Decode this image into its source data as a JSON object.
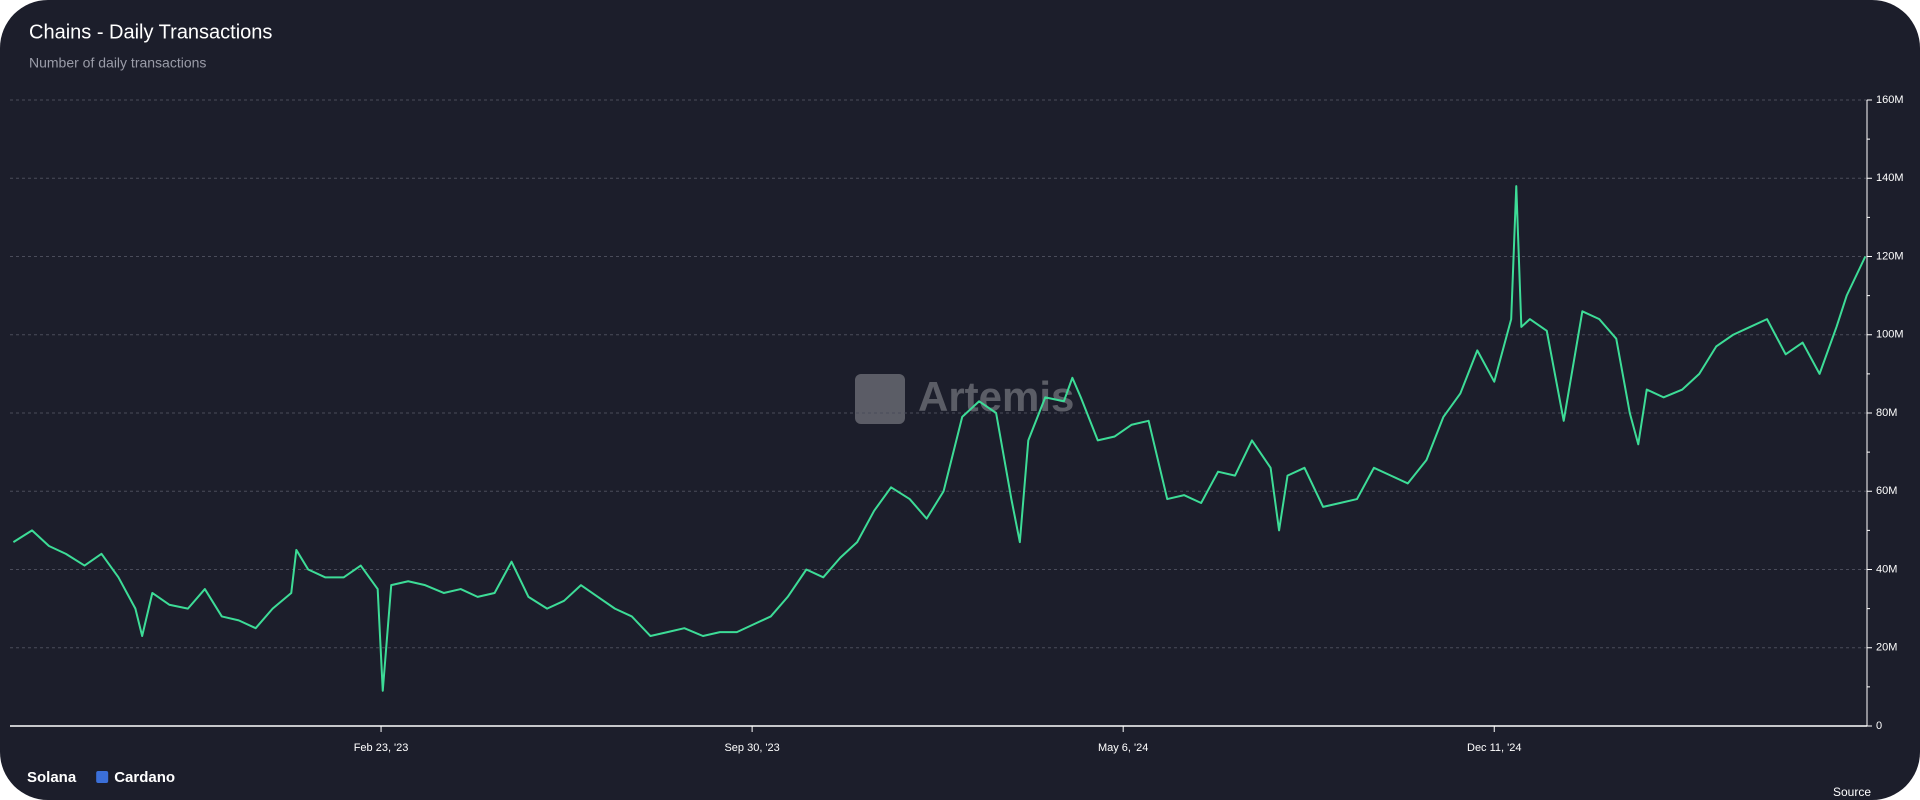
{
  "chart_data": {
    "type": "line",
    "title": "Chains - Daily Transactions",
    "subtitle": "Number of daily transactions",
    "watermark": "Artemis",
    "source": "Source",
    "legend": [
      {
        "name": "Solana",
        "color": "#3ddc97"
      },
      {
        "name": "Cardano",
        "color": "#3b6fd8"
      }
    ],
    "x": [
      "2022-07-21",
      "2022-08-01",
      "2022-08-11",
      "2022-08-21",
      "2022-09-01",
      "2022-09-11",
      "2022-09-21",
      "2022-10-01",
      "2022-10-05",
      "2022-10-11",
      "2022-10-21",
      "2022-11-01",
      "2022-11-11",
      "2022-11-21",
      "2022-12-01",
      "2022-12-11",
      "2022-12-21",
      "2023-01-01",
      "2023-01-04",
      "2023-01-11",
      "2023-01-21",
      "2023-02-01",
      "2023-02-11",
      "2023-02-21",
      "2023-02-24",
      "2023-03-01",
      "2023-03-11",
      "2023-03-21",
      "2023-04-01",
      "2023-04-11",
      "2023-04-21",
      "2023-05-01",
      "2023-05-11",
      "2023-05-21",
      "2023-06-01",
      "2023-06-11",
      "2023-06-21",
      "2023-07-01",
      "2023-07-11",
      "2023-07-21",
      "2023-08-01",
      "2023-08-11",
      "2023-08-21",
      "2023-09-01",
      "2023-09-11",
      "2023-09-21",
      "2023-10-01",
      "2023-10-11",
      "2023-10-21",
      "2023-11-01",
      "2023-11-11",
      "2023-11-21",
      "2023-12-01",
      "2023-12-11",
      "2023-12-21",
      "2024-01-01",
      "2024-01-11",
      "2024-01-21",
      "2024-02-01",
      "2024-02-11",
      "2024-02-21",
      "2024-03-01",
      "2024-03-06",
      "2024-03-11",
      "2024-03-21",
      "2024-04-01",
      "2024-04-06",
      "2024-04-11",
      "2024-04-21",
      "2024-05-01",
      "2024-05-11",
      "2024-05-21",
      "2024-06-01",
      "2024-06-11",
      "2024-06-21",
      "2024-07-01",
      "2024-07-11",
      "2024-07-21",
      "2024-08-01",
      "2024-08-06",
      "2024-08-11",
      "2024-08-21",
      "2024-09-01",
      "2024-09-11",
      "2024-09-21",
      "2024-10-01",
      "2024-10-11",
      "2024-10-21",
      "2024-11-01",
      "2024-11-11",
      "2024-11-21",
      "2024-12-01",
      "2024-12-11",
      "2024-12-21",
      "2024-12-24",
      "2024-12-27",
      "2025-01-01",
      "2025-01-11",
      "2025-01-21",
      "2025-02-01",
      "2025-02-11",
      "2025-02-21",
      "2025-03-01",
      "2025-03-06",
      "2025-03-11",
      "2025-03-21",
      "2025-04-01",
      "2025-04-11",
      "2025-04-21",
      "2025-05-01",
      "2025-05-11",
      "2025-05-21",
      "2025-06-01",
      "2025-06-11",
      "2025-06-21",
      "2025-07-01",
      "2025-07-07",
      "2025-07-18"
    ],
    "series": [
      {
        "color": "#3ddc97",
        "values": [
          47000000.0,
          50000000.0,
          46000000.0,
          44000000.0,
          41000000.0,
          44000000.0,
          38000000.0,
          30000000.0,
          23000000.0,
          34000000.0,
          31000000.0,
          30000000.0,
          35000000.0,
          28000000.0,
          27000000.0,
          25000000.0,
          30000000.0,
          34000000.0,
          45000000.0,
          40000000.0,
          38000000.0,
          38000000.0,
          41000000.0,
          35000000.0,
          9000000.0,
          36000000.0,
          37000000.0,
          36000000.0,
          34000000.0,
          35000000.0,
          33000000.0,
          34000000.0,
          42000000.0,
          33000000.0,
          30000000.0,
          32000000.0,
          36000000.0,
          33000000.0,
          30000000.0,
          28000000.0,
          23000000.0,
          24000000.0,
          25000000.0,
          23000000.0,
          24000000.0,
          24000000.0,
          26000000.0,
          28000000.0,
          33000000.0,
          40000000.0,
          38000000.0,
          43000000.0,
          47000000.0,
          55000000.0,
          61000000.0,
          58000000.0,
          53000000.0,
          60000000.0,
          79000000.0,
          83000000.0,
          80000000.0,
          58000000.0,
          47000000.0,
          73000000.0,
          84000000.0,
          83000000.0,
          89000000.0,
          84000000.0,
          73000000.0,
          74000000.0,
          77000000.0,
          78000000.0,
          58000000.0,
          59000000.0,
          57000000.0,
          65000000.0,
          64000000.0,
          73000000.0,
          66000000.0,
          50000000.0,
          64000000.0,
          66000000.0,
          56000000.0,
          57000000.0,
          58000000.0,
          66000000.0,
          64000000.0,
          62000000.0,
          68000000.0,
          79000000.0,
          85000000.0,
          96000000.0,
          88000000.0,
          104000000.0,
          138000000.0,
          102000000.0,
          104000000.0,
          101000000.0,
          78000000.0,
          106000000.0,
          104000000.0,
          99000000.0,
          80000000.0,
          72000000.0,
          86000000.0,
          84000000.0,
          86000000.0,
          90000000.0,
          97000000.0,
          100000000.0,
          102000000.0,
          104000000.0,
          95000000.0,
          98000000.0,
          90000000.0,
          102000000.0,
          110000000.0,
          120000000.0
        ]
      }
    ],
    "xlim": [
      "2022-07-19",
      "2025-07-19"
    ],
    "xticks": [
      {
        "value": "2023-02-23",
        "label": "Feb 23, '23"
      },
      {
        "value": "2023-09-30",
        "label": "Sep 30, '23"
      },
      {
        "value": "2024-05-06",
        "label": "May 6, '24"
      },
      {
        "value": "2024-12-11",
        "label": "Dec 11, '24"
      }
    ],
    "ylim": [
      0,
      160000000
    ],
    "yticks": [
      0,
      {
        "value": 20000000,
        "label": "20M"
      },
      {
        "value": 40000000,
        "label": "40M"
      },
      {
        "value": 60000000,
        "label": "60M"
      },
      {
        "value": 80000000,
        "label": "80M"
      },
      {
        "value": 100000000,
        "label": "100M"
      },
      {
        "value": 120000000,
        "label": "120M"
      },
      {
        "value": 140000000,
        "label": "140M"
      },
      {
        "value": 160000000,
        "label": "160M"
      }
    ],
    "grid": true
  }
}
